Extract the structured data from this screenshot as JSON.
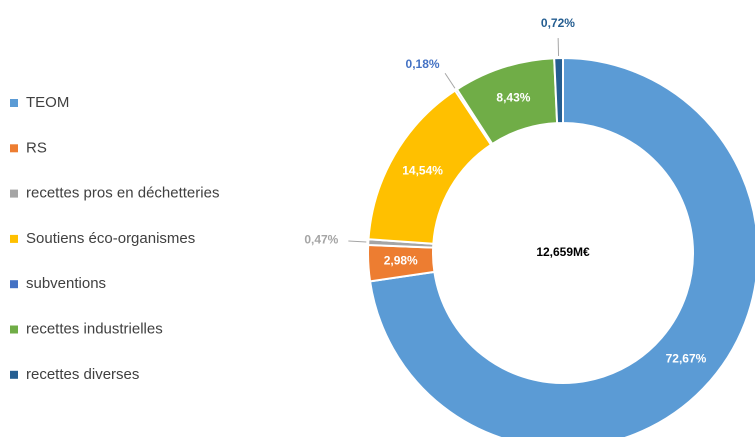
{
  "chart_data": {
    "type": "donut",
    "categories": [
      "TEOM",
      "RS",
      "recettes pros en déchetteries",
      "Soutiens éco-organismes",
      "subventions",
      "recettes industrielles",
      "recettes diverses"
    ],
    "values": [
      72.67,
      2.98,
      0.47,
      14.54,
      0.18,
      8.43,
      0.72
    ],
    "value_labels": [
      "72,67%",
      "2,98%",
      "0,47%",
      "14,54%",
      "0,18%",
      "8,43%",
      "0,72%"
    ],
    "colors": [
      "#5b9bd5",
      "#ed7d31",
      "#a5a5a5",
      "#ffc000",
      "#4472c4",
      "#70ad47",
      "#255e91"
    ],
    "center_label": "12,659M€",
    "legend": "left"
  }
}
